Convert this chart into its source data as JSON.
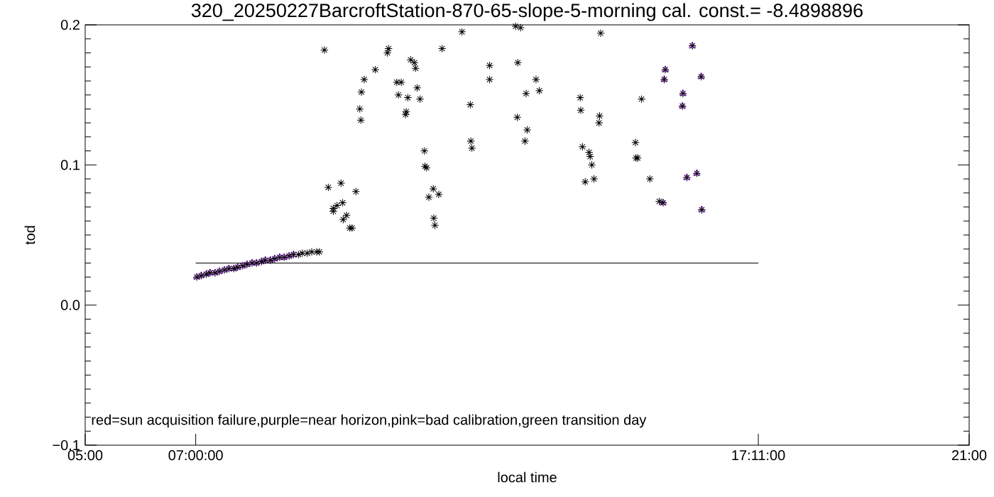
{
  "chart_data": {
    "type": "scatter",
    "title": "320_20250227BarcroftStation-870-65-slope-5-morning cal. const.= -8.4898896",
    "xlabel": "local time",
    "ylabel": "tod",
    "annotations": [
      "red=sun acquisition failure,purple=near horizon,pink=bad calibration,green transition day"
    ],
    "xlim": [
      5,
      21
    ],
    "ylim": [
      -0.1,
      0.2
    ],
    "xticks": [
      {
        "value": 5,
        "label": "05:00"
      },
      {
        "value": 7,
        "label": "07:00:00"
      },
      {
        "value": 17.1833,
        "label": "17:11:00"
      },
      {
        "value": 21,
        "label": "21:00"
      }
    ],
    "yticks": [
      {
        "value": -0.1,
        "label": "−0.1"
      },
      {
        "value": 0,
        "label": "0.0"
      },
      0.1,
      0.2
    ],
    "series": [
      {
        "type": "scatter",
        "color": "#a020f0",
        "marker": "triangle",
        "x": [
          7.02,
          7.1,
          7.19,
          7.26,
          7.35,
          7.43,
          7.52,
          7.6,
          7.69,
          7.76,
          7.85,
          7.93,
          8.02,
          8.1,
          8.19,
          8.26,
          8.35,
          8.43,
          8.52,
          8.6,
          8.69,
          8.77,
          15.46,
          15.48,
          15.5,
          15.81,
          15.82,
          15.89,
          15.99,
          16.07,
          16.15,
          16.16
        ],
        "values": [
          0.02,
          0.021,
          0.022,
          0.023,
          0.023,
          0.024,
          0.025,
          0.026,
          0.026,
          0.027,
          0.028,
          0.029,
          0.03,
          0.03,
          0.031,
          0.032,
          0.032,
          0.033,
          0.034,
          0.034,
          0.035,
          0.036,
          0.073,
          0.161,
          0.168,
          0.142,
          0.151,
          0.091,
          0.185,
          0.094,
          0.163,
          0.068
        ]
      },
      {
        "type": "scatter",
        "color": "#000000",
        "marker": "cross",
        "x": [
          7.02,
          7.1,
          7.19,
          7.26,
          7.35,
          7.43,
          7.52,
          7.6,
          7.69,
          7.76,
          7.85,
          7.93,
          8.02,
          8.1,
          8.19,
          8.26,
          8.35,
          8.43,
          8.52,
          8.6,
          8.69,
          8.77,
          8.86,
          8.93,
          9.02,
          9.1,
          9.19,
          9.24,
          9.33,
          9.4,
          9.49,
          9.49,
          9.56,
          9.63,
          9.66,
          9.67,
          9.73,
          9.79,
          9.83,
          9.9,
          9.97,
          9.99,
          10.0,
          10.05,
          10.25,
          10.47,
          10.49,
          10.64,
          10.67,
          10.72,
          10.8,
          10.81,
          10.84,
          10.89,
          10.96,
          10.98,
          11.01,
          11.06,
          11.14,
          11.15,
          11.18,
          11.22,
          11.3,
          11.31,
          11.33,
          11.4,
          11.46,
          11.82,
          11.97,
          11.98,
          12.0,
          12.32,
          12.32,
          12.79,
          12.82,
          12.83,
          12.88,
          12.96,
          12.98,
          13.0,
          13.16,
          13.22,
          13.96,
          13.97,
          14.0,
          14.05,
          14.12,
          14.14,
          14.17,
          14.21,
          14.3,
          14.31,
          14.33,
          14.96,
          14.97,
          15.0,
          15.07,
          15.22,
          15.39,
          15.46,
          15.48,
          15.5,
          15.81,
          15.82,
          15.89,
          15.99,
          16.07,
          16.15,
          16.16
        ],
        "values": [
          0.02,
          0.021,
          0.022,
          0.023,
          0.023,
          0.024,
          0.025,
          0.026,
          0.026,
          0.027,
          0.028,
          0.029,
          0.03,
          0.03,
          0.031,
          0.032,
          0.032,
          0.033,
          0.034,
          0.034,
          0.035,
          0.036,
          0.036,
          0.037,
          0.037,
          0.038,
          0.038,
          0.038,
          0.182,
          0.084,
          0.069,
          0.067,
          0.071,
          0.087,
          0.073,
          0.061,
          0.064,
          0.055,
          0.055,
          0.081,
          0.14,
          0.132,
          0.152,
          0.161,
          0.168,
          0.18,
          0.183,
          0.159,
          0.15,
          0.159,
          0.136,
          0.138,
          0.148,
          0.175,
          0.173,
          0.169,
          0.155,
          0.147,
          0.11,
          0.099,
          0.098,
          0.077,
          0.083,
          0.062,
          0.057,
          0.079,
          0.183,
          0.195,
          0.143,
          0.117,
          0.112,
          0.171,
          0.161,
          0.199,
          0.134,
          0.173,
          0.198,
          0.117,
          0.151,
          0.125,
          0.161,
          0.153,
          0.148,
          0.139,
          0.113,
          0.088,
          0.109,
          0.106,
          0.1,
          0.09,
          0.13,
          0.135,
          0.194,
          0.116,
          0.105,
          0.105,
          0.147,
          0.09,
          0.074,
          0.073,
          0.161,
          0.168,
          0.142,
          0.151,
          0.091,
          0.185,
          0.094,
          0.163,
          0.068
        ]
      },
      {
        "type": "line",
        "color": "#000000",
        "marker": "none",
        "line_style": "solid",
        "x": [
          7,
          17.1833
        ],
        "values": [
          0.03,
          0.03
        ]
      }
    ]
  }
}
